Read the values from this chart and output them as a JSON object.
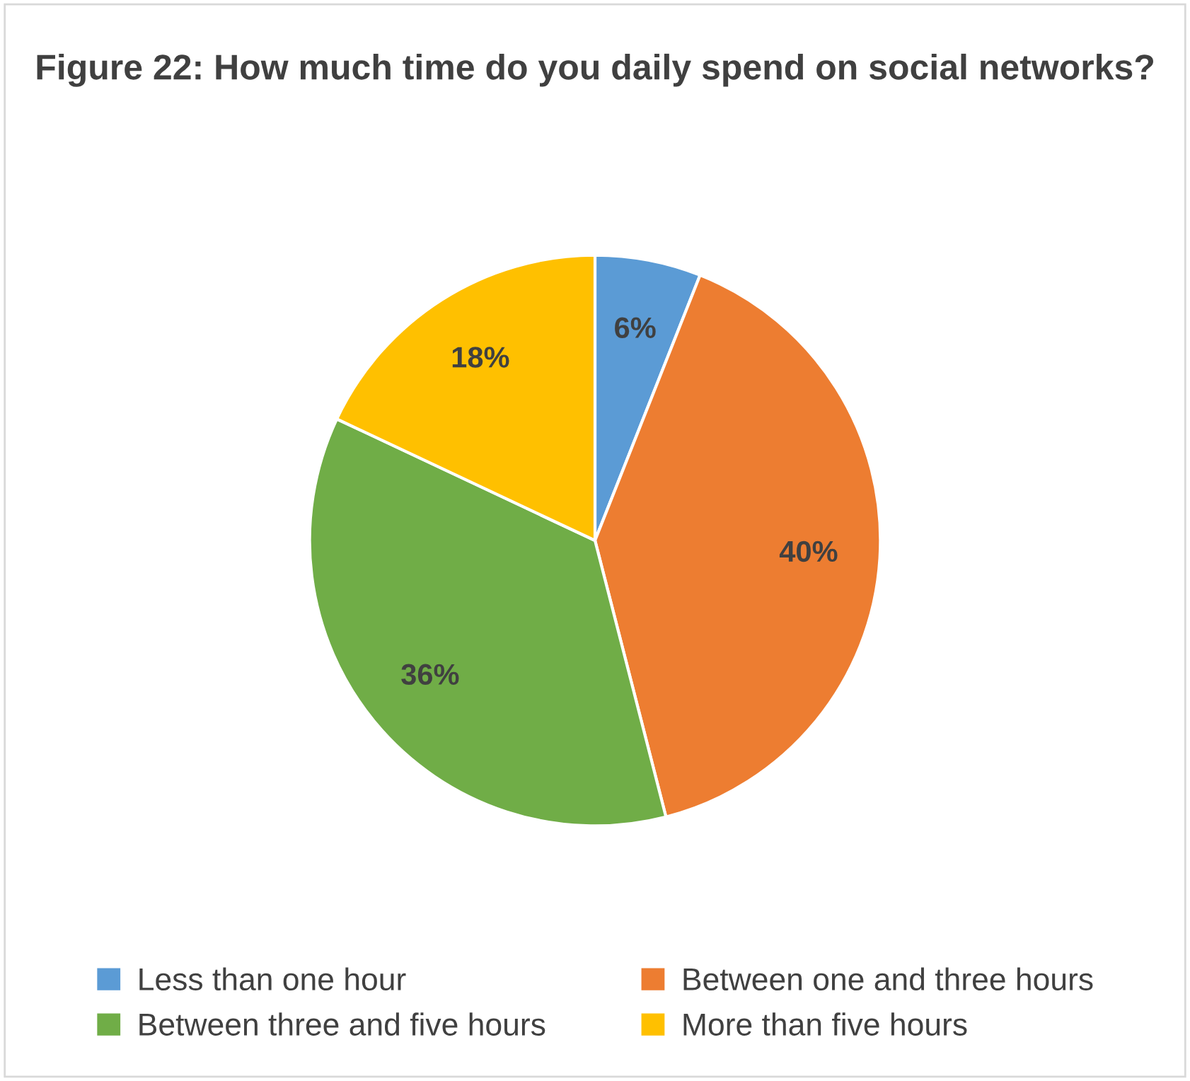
{
  "chart_data": {
    "type": "pie",
    "title": "Figure 22: How much time do you daily spend on social networks?",
    "categories": [
      "Less than one hour",
      "Between one and three hours",
      "Between three and five hours",
      "More than five hours"
    ],
    "values": [
      6,
      40,
      36,
      18
    ],
    "colors": [
      "#5b9bd5",
      "#ed7d31",
      "#70ad47",
      "#ffc000"
    ],
    "value_labels": [
      "6%",
      "40%",
      "36%",
      "18%"
    ],
    "legend": "bottom"
  }
}
